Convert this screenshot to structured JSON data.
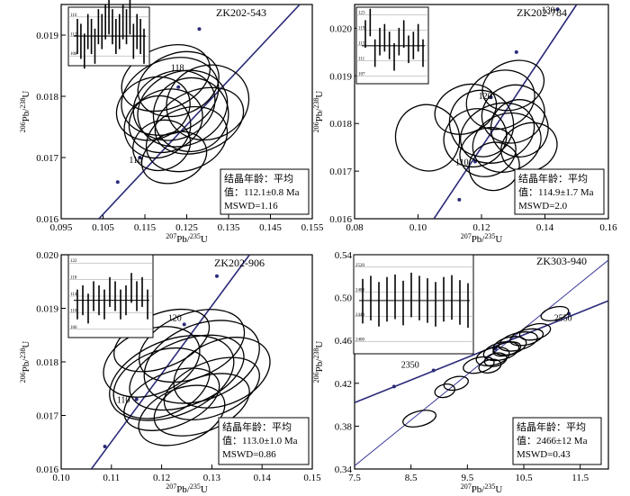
{
  "chart_data": [
    {
      "type": "scatter",
      "sample": "ZK202-543",
      "xlabel": "207Pb/235U",
      "ylabel": "206Pb/238U",
      "xlim": [
        0.095,
        0.155
      ],
      "ylim": [
        0.016,
        0.0195
      ],
      "xticks": [
        "0.095",
        "0.105",
        "0.115",
        "0.125",
        "0.135",
        "0.145",
        "0.155"
      ],
      "yticks": [
        "0.016",
        "0.017",
        "0.018",
        "0.019"
      ],
      "concordia_age_labels": [
        "110",
        "118"
      ],
      "info": [
        "结晶年龄：平均",
        "值：112.1±0.8 Ma",
        "MSWD=1.16"
      ],
      "inset_yticks": [
        "116",
        "112",
        "108"
      ],
      "inset_values": [
        112,
        111,
        109,
        113,
        112,
        110,
        114,
        113,
        115,
        116,
        114,
        112,
        113,
        115,
        114,
        116,
        111,
        113,
        112,
        110
      ],
      "inset_mean": 112.1
    },
    {
      "type": "scatter",
      "sample": "ZK202-784",
      "xlabel": "207Pb/235U",
      "ylabel": "206Pb/238U",
      "xlim": [
        0.08,
        0.16
      ],
      "ylim": [
        0.016,
        0.0205
      ],
      "xticks": [
        "0.08",
        "0.10",
        "0.12",
        "0.14",
        "0.16"
      ],
      "yticks": [
        "0.016",
        "0.017",
        "0.018",
        "0.019",
        "0.020"
      ],
      "concordia_age_labels": [
        "110",
        "120",
        "130"
      ],
      "info": [
        "结晶年龄：平均",
        "值：114.9±1.7 Ma",
        "MSWD=2.0"
      ],
      "inset_yticks": [
        "123",
        "119",
        "115",
        "111",
        "107"
      ],
      "inset_values": [
        118,
        121,
        113,
        116,
        117,
        115,
        112,
        116,
        118,
        114,
        115,
        117,
        113
      ],
      "inset_mean": 114.9
    },
    {
      "type": "scatter",
      "sample": "ZK202-906",
      "xlabel": "207Pb/235U",
      "ylabel": "206Pb/238U",
      "xlim": [
        0.1,
        0.15
      ],
      "ylim": [
        0.016,
        0.02
      ],
      "xticks": [
        "0.10",
        "0.11",
        "0.12",
        "0.13",
        "0.14",
        "0.15"
      ],
      "yticks": [
        "0.016",
        "0.017",
        "0.018",
        "0.019",
        "0.020"
      ],
      "concordia_age_labels": [
        "110",
        "120"
      ],
      "info": [
        "结晶年龄：平均",
        "值：113.0±1.0 Ma",
        "MSWD=0.86"
      ],
      "inset_yticks": [
        "122",
        "118",
        "114",
        "110",
        "106"
      ],
      "inset_values": [
        112,
        113,
        111,
        114,
        113,
        112,
        115,
        114,
        112,
        113,
        116,
        114,
        115,
        112
      ],
      "inset_mean": 113.0
    },
    {
      "type": "scatter",
      "sample": "ZK303-940",
      "xlabel": "207Pb/235U",
      "ylabel": "206Pb/238U",
      "xlim": [
        7.5,
        12.0
      ],
      "ylim": [
        0.34,
        0.54
      ],
      "xticks": [
        "7.5",
        "8.5",
        "9.5",
        "10.5",
        "11.5"
      ],
      "yticks": [
        "0.34",
        "0.38",
        "0.42",
        "0.46",
        "0.50",
        "0.54"
      ],
      "concordia_age_labels": [
        "2350",
        "2550"
      ],
      "info": [
        "结晶年龄：平均",
        "值：2466±12 Ma",
        "MSWD=0.43"
      ],
      "inset_yticks": [
        "2520",
        "2480",
        "2440",
        "2400"
      ],
      "inset_values": [
        2465,
        2470,
        2460,
        2468,
        2472,
        2462,
        2475,
        2470,
        2466,
        2460,
        2468,
        2471,
        2463,
        2458
      ],
      "inset_mean": 2466
    }
  ]
}
